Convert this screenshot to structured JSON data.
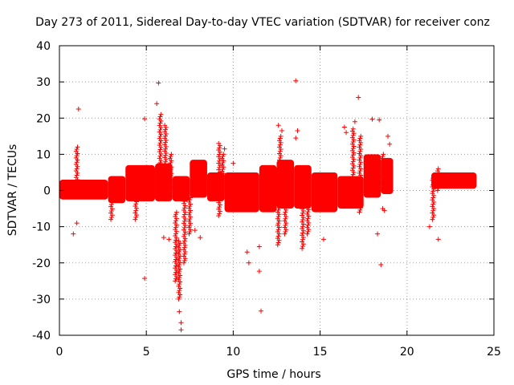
{
  "chart_data": {
    "type": "scatter",
    "title": "Day 273 of 2011, Sidereal Day-to-day VTEC variation (SDTVAR) for receiver conz",
    "xlabel": "GPS time / hours",
    "ylabel": "SDTVAR / TECUs",
    "xlim": [
      0,
      25
    ],
    "ylim": [
      -40,
      40
    ],
    "xticks": [
      "0",
      "5",
      "10",
      "15",
      "20",
      "25"
    ],
    "yticks": [
      "-40",
      "-30",
      "-20",
      "-10",
      "0",
      "10",
      "20",
      "30",
      "40"
    ],
    "grid": true,
    "marker": "+",
    "color": "#ff0000",
    "series": [
      {
        "name": "SDTVAR",
        "band_segments": [
          {
            "x": [
              0.0,
              2.8
            ],
            "lo": -2.5,
            "hi": 3.0
          },
          {
            "x": [
              2.8,
              3.8
            ],
            "lo": -3.5,
            "hi": 4.0
          },
          {
            "x": [
              3.8,
              5.5
            ],
            "lo": -3.0,
            "hi": 7.0
          },
          {
            "x": [
              5.5,
              6.5
            ],
            "lo": -3.0,
            "hi": 7.5
          },
          {
            "x": [
              6.5,
              7.5
            ],
            "lo": -3.0,
            "hi": 4.0
          },
          {
            "x": [
              7.5,
              8.5
            ],
            "lo": -2.0,
            "hi": 8.5
          },
          {
            "x": [
              8.5,
              9.5
            ],
            "lo": -3.0,
            "hi": 5.0
          },
          {
            "x": [
              9.5,
              11.5
            ],
            "lo": -6.0,
            "hi": 5.0
          },
          {
            "x": [
              11.5,
              12.5
            ],
            "lo": -6.0,
            "hi": 7.0
          },
          {
            "x": [
              12.5,
              13.5
            ],
            "lo": -5.0,
            "hi": 8.5
          },
          {
            "x": [
              13.5,
              14.5
            ],
            "lo": -5.0,
            "hi": 7.0
          },
          {
            "x": [
              14.5,
              16.0
            ],
            "lo": -6.0,
            "hi": 5.0
          },
          {
            "x": [
              16.0,
              17.5
            ],
            "lo": -5.0,
            "hi": 4.0
          },
          {
            "x": [
              17.5,
              18.5
            ],
            "lo": -2.0,
            "hi": 10.0
          },
          {
            "x": [
              18.5,
              19.2
            ],
            "lo": -1.0,
            "hi": 9.0
          },
          {
            "x": [
              21.4,
              24.0
            ],
            "lo": 0.5,
            "hi": 5.0
          }
        ],
        "streaks": [
          {
            "x": 5.8,
            "y": [
              -2,
              21
            ]
          },
          {
            "x": 6.1,
            "y": [
              2,
              18
            ]
          },
          {
            "x": 6.4,
            "y": [
              0,
              10
            ]
          },
          {
            "x": 6.7,
            "y": [
              -25,
              -6
            ]
          },
          {
            "x": 6.9,
            "y": [
              -30,
              -14
            ]
          },
          {
            "x": 7.2,
            "y": [
              -20,
              -3
            ]
          },
          {
            "x": 7.5,
            "y": [
              -12,
              -2
            ]
          },
          {
            "x": 4.4,
            "y": [
              -8,
              3
            ]
          },
          {
            "x": 1.0,
            "y": [
              0,
              12
            ]
          },
          {
            "x": 3.0,
            "y": [
              -8,
              2
            ]
          },
          {
            "x": 9.2,
            "y": [
              -7,
              13
            ]
          },
          {
            "x": 9.4,
            "y": [
              0,
              10
            ]
          },
          {
            "x": 12.6,
            "y": [
              -15,
              0
            ]
          },
          {
            "x": 13.0,
            "y": [
              -12,
              0
            ]
          },
          {
            "x": 14.0,
            "y": [
              -16,
              -2
            ]
          },
          {
            "x": 14.3,
            "y": [
              -12,
              -1
            ]
          },
          {
            "x": 12.7,
            "y": [
              3,
              15
            ]
          },
          {
            "x": 16.9,
            "y": [
              2,
              17
            ]
          },
          {
            "x": 17.3,
            "y": [
              -6,
              15
            ]
          },
          {
            "x": 18.6,
            "y": [
              0,
              10
            ]
          },
          {
            "x": 21.5,
            "y": [
              -8,
              4
            ]
          },
          {
            "x": 21.8,
            "y": [
              0,
              6
            ]
          }
        ],
        "outliers": [
          [
            1.1,
            22.5
          ],
          [
            0.8,
            -12
          ],
          [
            1.0,
            -9
          ],
          [
            4.9,
            19.8
          ],
          [
            4.9,
            -24.3
          ],
          [
            5.6,
            24.0
          ],
          [
            5.7,
            29.7
          ],
          [
            6.0,
            -13.0
          ],
          [
            6.3,
            -13.5
          ],
          [
            7.0,
            -36.5
          ],
          [
            7.0,
            -38.5
          ],
          [
            6.9,
            -33.5
          ],
          [
            7.8,
            -11.0
          ],
          [
            8.1,
            -13.0
          ],
          [
            9.5,
            11.5
          ],
          [
            10.0,
            7.5
          ],
          [
            10.8,
            -17.0
          ],
          [
            10.9,
            -20.0
          ],
          [
            11.5,
            -15.5
          ],
          [
            11.5,
            -22.3
          ],
          [
            11.6,
            -33.3
          ],
          [
            12.6,
            18.0
          ],
          [
            12.8,
            16.5
          ],
          [
            13.6,
            30.3
          ],
          [
            13.7,
            16.5
          ],
          [
            13.6,
            14.5
          ],
          [
            15.2,
            -13.5
          ],
          [
            16.4,
            17.5
          ],
          [
            16.5,
            16.0
          ],
          [
            17.2,
            25.7
          ],
          [
            17.0,
            19.0
          ],
          [
            18.0,
            19.7
          ],
          [
            18.4,
            19.5
          ],
          [
            18.3,
            -12.0
          ],
          [
            18.5,
            -20.5
          ],
          [
            18.6,
            -5.0
          ],
          [
            18.9,
            15.0
          ],
          [
            19.0,
            12.8
          ],
          [
            18.7,
            -5.5
          ],
          [
            19.0,
            2.5
          ],
          [
            21.3,
            -10.0
          ],
          [
            21.8,
            -13.5
          ]
        ]
      }
    ]
  }
}
